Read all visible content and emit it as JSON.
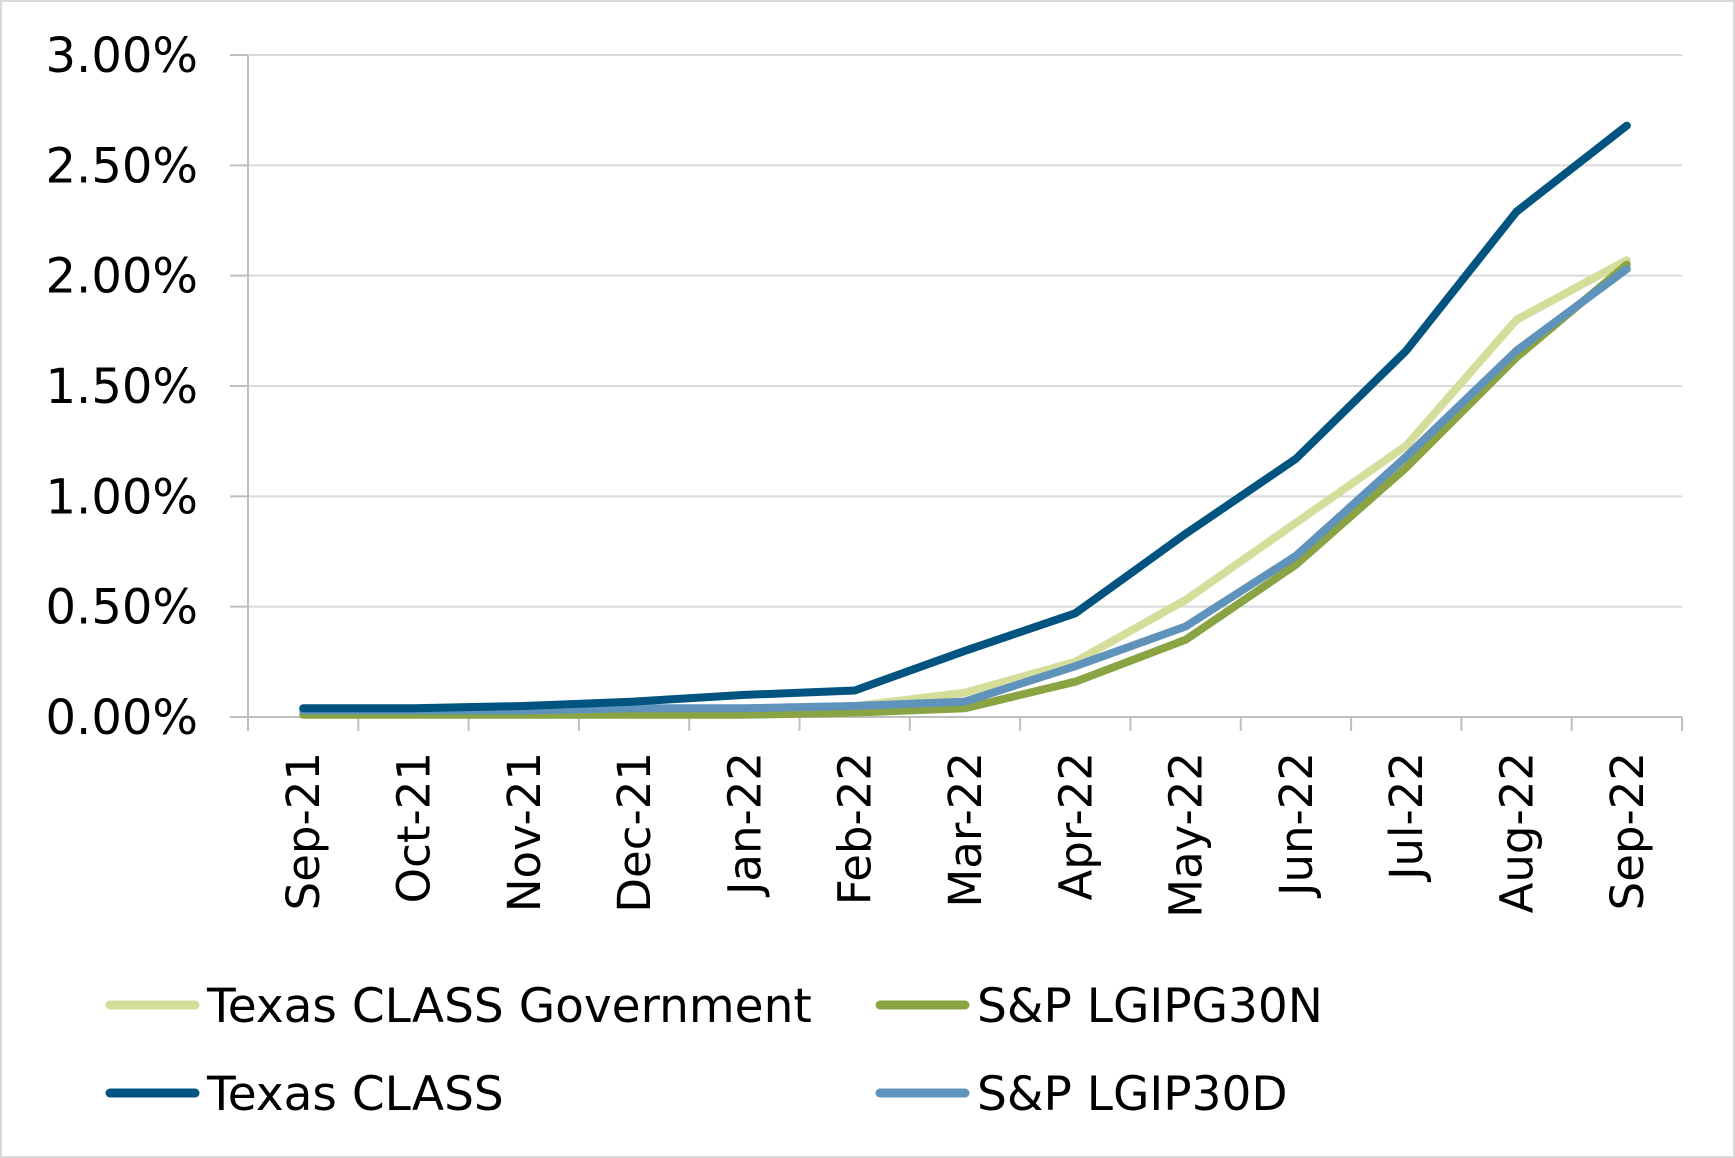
{
  "chart_data": {
    "type": "line",
    "title": "",
    "xlabel": "",
    "ylabel": "",
    "categories": [
      "Sep-21",
      "Oct-21",
      "Nov-21",
      "Dec-21",
      "Jan-22",
      "Feb-22",
      "Mar-22",
      "Apr-22",
      "May-22",
      "Jun-22",
      "Jul-22",
      "Aug-22",
      "Sep-22"
    ],
    "ylim": [
      0,
      3.0
    ],
    "y_ticks": [
      "0.00%",
      "0.50%",
      "1.00%",
      "1.50%",
      "2.00%",
      "2.50%",
      "3.00%"
    ],
    "grid": "horizontal",
    "legend_position": "bottom",
    "series": [
      {
        "name": "Texas CLASS Government",
        "color": "#d4dd9a",
        "values": [
          0.02,
          0.02,
          0.02,
          0.02,
          0.03,
          0.05,
          0.11,
          0.25,
          0.53,
          0.88,
          1.23,
          1.8,
          2.07
        ]
      },
      {
        "name": "S&P LGIPG30N",
        "color": "#8aa444",
        "values": [
          0.01,
          0.01,
          0.01,
          0.01,
          0.01,
          0.02,
          0.04,
          0.16,
          0.35,
          0.69,
          1.13,
          1.63,
          2.05
        ]
      },
      {
        "name": "Texas CLASS",
        "color": "#00547f",
        "values": [
          0.04,
          0.04,
          0.05,
          0.07,
          0.1,
          0.12,
          0.3,
          0.47,
          0.83,
          1.17,
          1.66,
          2.29,
          2.68
        ]
      },
      {
        "name": "S&P LGIP30D",
        "color": "#5f93bb",
        "values": [
          0.03,
          0.03,
          0.03,
          0.04,
          0.04,
          0.05,
          0.07,
          0.23,
          0.41,
          0.73,
          1.18,
          1.66,
          2.03
        ]
      }
    ]
  }
}
